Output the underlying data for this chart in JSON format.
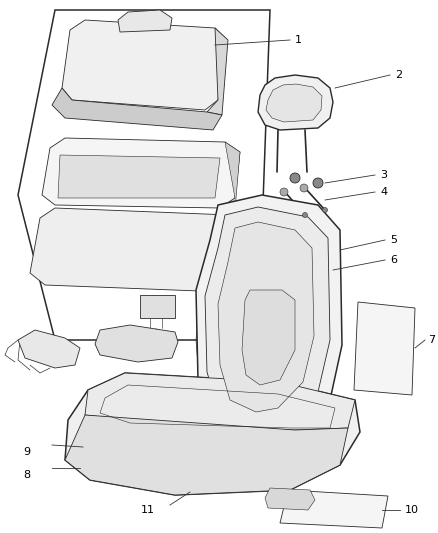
{
  "background_color": "#ffffff",
  "line_color": "#2a2a2a",
  "label_color": "#000000",
  "lw_main": 1.0,
  "lw_detail": 0.6,
  "lw_thin": 0.4,
  "figsize": [
    4.38,
    5.33
  ],
  "dpi": 100
}
